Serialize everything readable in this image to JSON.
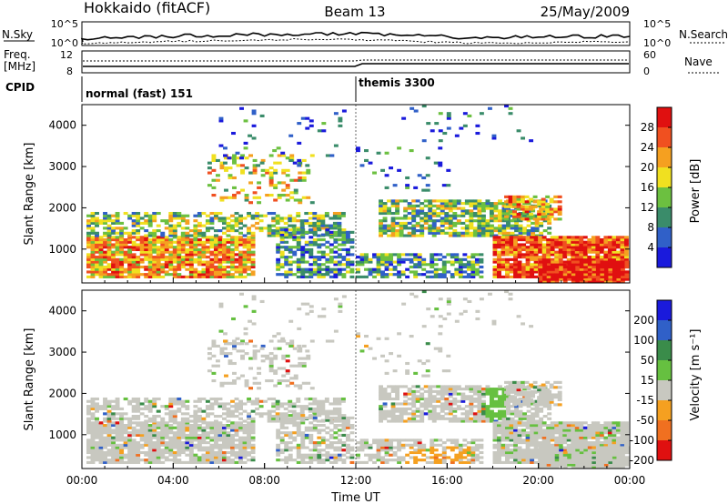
{
  "header": {
    "radar": "Hokkaido (fitACF)",
    "beam": "Beam 13",
    "date": "25/May/2009"
  },
  "top_panels": {
    "nsky_label": "N.Sky",
    "nsky_ticks": [
      "10^5",
      "10^0"
    ],
    "nsearch_label": "N.Search",
    "nsearch_ticks": [
      "10^5",
      "10^0"
    ],
    "freq_label_1": "Freq.",
    "freq_label_2": "[MHz]",
    "freq_ticks": [
      "12",
      "8"
    ],
    "nave_label": "Nave",
    "nave_ticks": [
      "60",
      "0"
    ],
    "cpid_label": "CPID",
    "cpid_modes": [
      {
        "name": "normal (fast) 151",
        "start_hour": 0
      },
      {
        "name": "themis 3300",
        "start_hour": 12
      }
    ]
  },
  "chart_data": [
    {
      "type": "heatmap",
      "title": "",
      "xlabel": "",
      "ylabel": "Slant Range [km]",
      "xlim_hours": [
        0,
        24
      ],
      "ylim": [
        180,
        4500
      ],
      "yticks": [
        "1000",
        "2000",
        "3000",
        "4000"
      ],
      "colorbar": {
        "label": "Power [dB]",
        "ticks": [
          "4",
          "8",
          "12",
          "16",
          "20",
          "24",
          "28"
        ],
        "colors": [
          "#1a1adc",
          "#3060c8",
          "#3a8c6a",
          "#6cc040",
          "#f0e020",
          "#f5a020",
          "#f05020",
          "#e01010"
        ]
      }
    },
    {
      "type": "heatmap",
      "title": "",
      "xlabel": "Time UT",
      "ylabel": "Slant Range [km]",
      "xlim_hours": [
        0,
        24
      ],
      "ylim": [
        180,
        4500
      ],
      "yticks": [
        "1000",
        "2000",
        "3000",
        "4000"
      ],
      "xticks": [
        "00:00",
        "04:00",
        "08:00",
        "12:00",
        "16:00",
        "20:00",
        "00:00"
      ],
      "colorbar": {
        "label": "Velocity [m s⁻¹]",
        "ticks": [
          "200",
          "100",
          "50",
          "15",
          "-15",
          "-50",
          "-100",
          "-200"
        ],
        "colors": [
          "#1a1adc",
          "#3060c8",
          "#3a8c4a",
          "#66c040",
          "#c8c8c0",
          "#f5a020",
          "#f07020",
          "#e01010"
        ]
      }
    }
  ]
}
